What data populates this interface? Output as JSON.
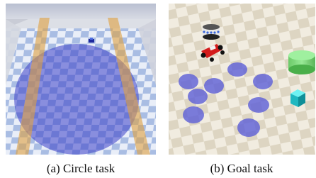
{
  "figure": {
    "panels": [
      {
        "caption": "(a) Circle task"
      },
      {
        "caption": "(b) Goal task"
      }
    ]
  }
}
